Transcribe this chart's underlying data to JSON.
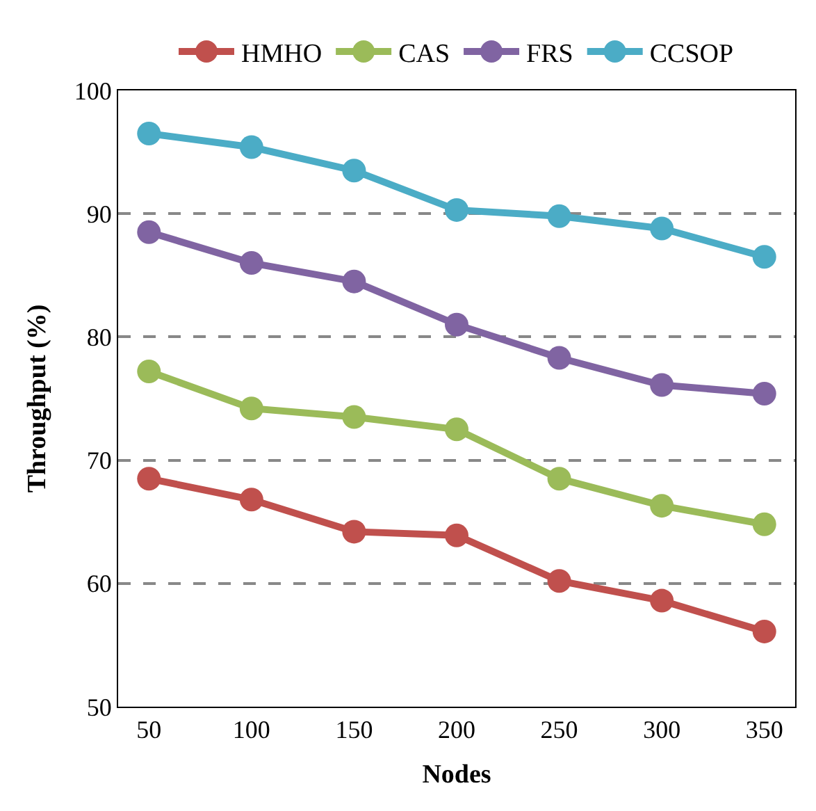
{
  "chart_data": {
    "type": "line",
    "xlabel": "Nodes",
    "ylabel": "Throughput (%)",
    "x": [
      50,
      100,
      150,
      200,
      250,
      300,
      350
    ],
    "series": [
      {
        "name": "HMHO",
        "color": "#c0504d",
        "values": [
          68.5,
          66.8,
          64.2,
          63.9,
          60.2,
          58.6,
          56.1
        ]
      },
      {
        "name": "CAS",
        "color": "#9bbb59",
        "values": [
          77.2,
          74.2,
          73.5,
          72.5,
          68.5,
          66.3,
          64.8
        ]
      },
      {
        "name": "FRS",
        "color": "#8064a2",
        "values": [
          88.5,
          86.0,
          84.5,
          81.0,
          78.3,
          76.1,
          75.4
        ]
      },
      {
        "name": "CCSOP",
        "color": "#4bacc6",
        "values": [
          96.5,
          95.4,
          93.5,
          90.3,
          89.8,
          88.8,
          86.5
        ]
      }
    ],
    "xlim": [
      35,
      365
    ],
    "xticks": [
      50,
      100,
      150,
      200,
      250,
      300,
      350
    ],
    "ylim": [
      50,
      100
    ],
    "yticks": [
      50,
      60,
      70,
      80,
      90,
      100
    ],
    "grid": "y",
    "legend": "top",
    "marker": "circle",
    "line_style": "solid"
  }
}
